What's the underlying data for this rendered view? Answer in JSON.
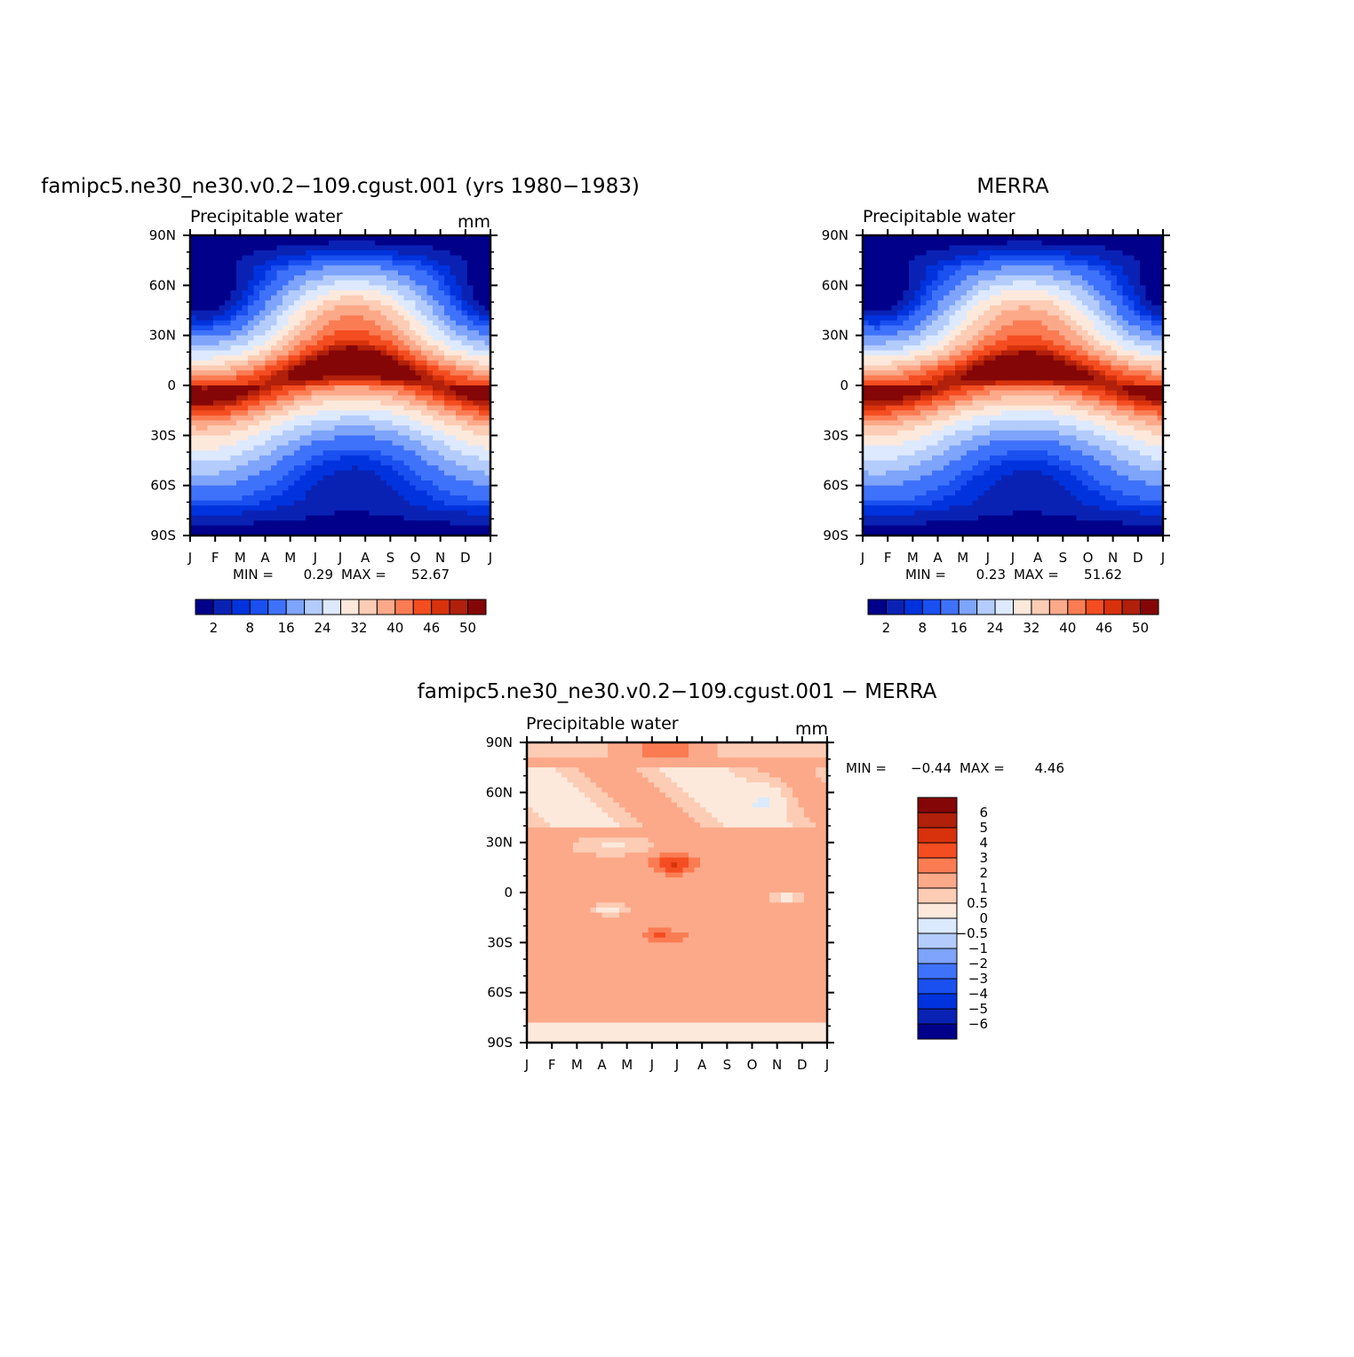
{
  "colors": {
    "min_max_palette": [
      "#00008b",
      "#0a22b4",
      "#0033dd",
      "#1a4ff0",
      "#3f72fa",
      "#7ea4fb",
      "#b3ccfc",
      "#dde9ff",
      "#fde9dc",
      "#fcccb4",
      "#fca98a",
      "#fb7c53",
      "#f44d21",
      "#d8320d",
      "#b0200b",
      "#850606"
    ],
    "diff_palette": [
      "#00008b",
      "#0a22b4",
      "#0033dd",
      "#1a4ff0",
      "#3f72fa",
      "#7ea4fb",
      "#b3ccfc",
      "#dbeaff",
      "#fde9dc",
      "#fcccb4",
      "#fca98a",
      "#fb7c53",
      "#f44d21",
      "#d8320d",
      "#b0200b",
      "#850606"
    ]
  },
  "chart_data": [
    {
      "type": "heatmap",
      "id": "model",
      "title": "famipc5.ne30_ne30.v0.2−109.cgust.001 (yrs 1980−1983)",
      "subtitle": "Precipitable water",
      "units": "mm",
      "x_tick_labels": [
        "J",
        "F",
        "M",
        "A",
        "M",
        "J",
        "J",
        "A",
        "S",
        "O",
        "N",
        "D",
        "J"
      ],
      "y_tick_labels": [
        "90N",
        "60N",
        "30N",
        "0",
        "30S",
        "60S",
        "90S"
      ],
      "y_range": [
        -90,
        90
      ],
      "levels": [
        2,
        4,
        6,
        8,
        12,
        16,
        20,
        24,
        28,
        32,
        36,
        40,
        44,
        46,
        48,
        50
      ],
      "colorbar_labels": [
        "2",
        "8",
        "16",
        "24",
        "32",
        "40",
        "46",
        "50"
      ],
      "colorbar_orientation": "horizontal",
      "min_label": "MIN =",
      "min_value": "0.29",
      "max_label": "MAX =",
      "max_value": "52.67",
      "field": {
        "itcz_max": 52.67,
        "itcz_lat_jan": -6,
        "itcz_lat_jul": 12,
        "min": 0.29
      }
    },
    {
      "type": "heatmap",
      "id": "obs",
      "title": "MERRA",
      "subtitle": "Precipitable water",
      "units": "",
      "x_tick_labels": [
        "J",
        "F",
        "M",
        "A",
        "M",
        "J",
        "J",
        "A",
        "S",
        "O",
        "N",
        "D",
        "J"
      ],
      "y_tick_labels": [
        "90N",
        "60N",
        "30N",
        "0",
        "30S",
        "60S",
        "90S"
      ],
      "y_range": [
        -90,
        90
      ],
      "levels": [
        2,
        4,
        6,
        8,
        12,
        16,
        20,
        24,
        28,
        32,
        36,
        40,
        44,
        46,
        48,
        50
      ],
      "colorbar_labels": [
        "2",
        "8",
        "16",
        "24",
        "32",
        "40",
        "46",
        "50"
      ],
      "colorbar_orientation": "horizontal",
      "min_label": "MIN =",
      "min_value": "0.23",
      "max_label": "MAX =",
      "max_value": "51.62",
      "field": {
        "itcz_max": 51.62,
        "itcz_lat_jan": -5,
        "itcz_lat_jul": 10,
        "min": 0.23
      }
    },
    {
      "type": "heatmap",
      "id": "diff",
      "title": "famipc5.ne30_ne30.v0.2−109.cgust.001 − MERRA",
      "subtitle": "Precipitable water",
      "units": "mm",
      "x_tick_labels": [
        "J",
        "F",
        "M",
        "A",
        "M",
        "J",
        "J",
        "A",
        "S",
        "O",
        "N",
        "D",
        "J"
      ],
      "y_tick_labels": [
        "90N",
        "60N",
        "30N",
        "0",
        "30S",
        "60S",
        "90S"
      ],
      "y_range": [
        -90,
        90
      ],
      "levels": [
        -6,
        -5,
        -4,
        -3,
        -2,
        -1,
        -0.5,
        0,
        0.5,
        1,
        2,
        3,
        4,
        5,
        6
      ],
      "colorbar_labels": [
        "6",
        "5",
        "4",
        "3",
        "2",
        "1",
        "0.5",
        "0",
        "−0.5",
        "−1",
        "−2",
        "−3",
        "−4",
        "−5",
        "−6"
      ],
      "colorbar_orientation": "vertical",
      "min_label": "MIN =",
      "min_value": "−0.44",
      "max_label": "MAX =",
      "max_value": "4.46",
      "field": {
        "min": -0.44,
        "max": 4.46
      }
    }
  ]
}
